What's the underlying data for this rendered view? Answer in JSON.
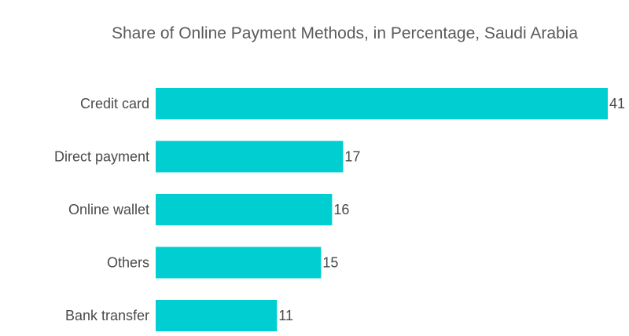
{
  "chart_data": {
    "type": "bar",
    "orientation": "horizontal",
    "title": "Share of Online Payment Methods, in Percentage, Saudi Arabia",
    "categories": [
      "Credit card",
      "Direct payment",
      "Online wallet",
      "Others",
      "Bank transfer"
    ],
    "values": [
      41,
      17,
      16,
      15,
      11
    ],
    "xlim": [
      0,
      41
    ],
    "grid": false,
    "legend": "none",
    "bar_color": "#00ced1"
  }
}
